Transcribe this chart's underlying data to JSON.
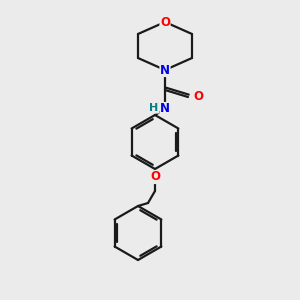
{
  "background_color": "#ebebeb",
  "bond_color": "#1a1a1a",
  "atom_colors": {
    "O": "#ff0000",
    "N": "#0000ee",
    "H": "#008080",
    "C": "#1a1a1a"
  },
  "figsize": [
    3.0,
    3.0
  ],
  "dpi": 100,
  "lw": 1.6
}
